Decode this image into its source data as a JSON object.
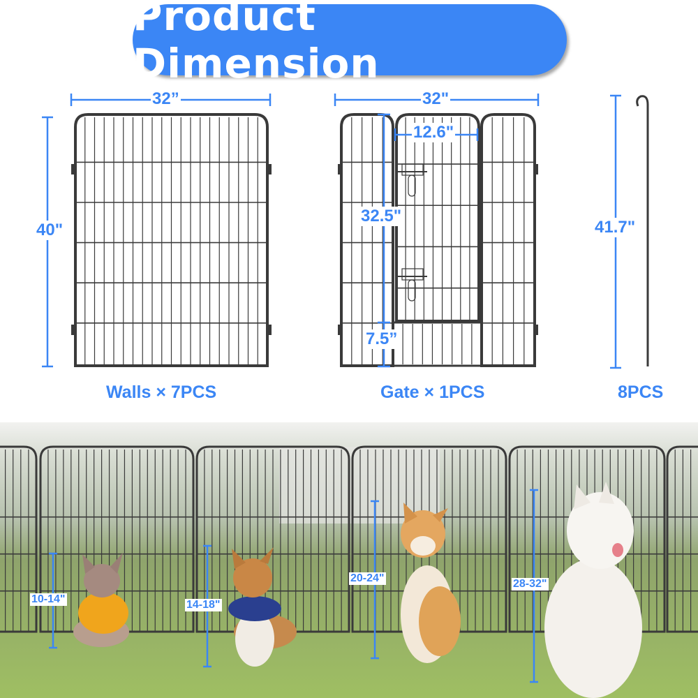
{
  "title": "Product Dimension",
  "colors": {
    "accent": "#3b86f5",
    "fence": "#3a3a3a"
  },
  "walls": {
    "width": "32”",
    "height": "40\"",
    "caption": "Walls × 7PCS"
  },
  "gate": {
    "width": "32\"",
    "door_width": "12.6\"",
    "door_height": "32.5\"",
    "bottom_height": "7.5”",
    "caption": "Gate × 1PCS"
  },
  "stake": {
    "height": "41.7\"",
    "caption": "8PCS"
  },
  "dogs": [
    {
      "height_range": "10-14\""
    },
    {
      "height_range": "14-18\""
    },
    {
      "height_range": "20-24\""
    },
    {
      "height_range": "28-32\""
    }
  ]
}
